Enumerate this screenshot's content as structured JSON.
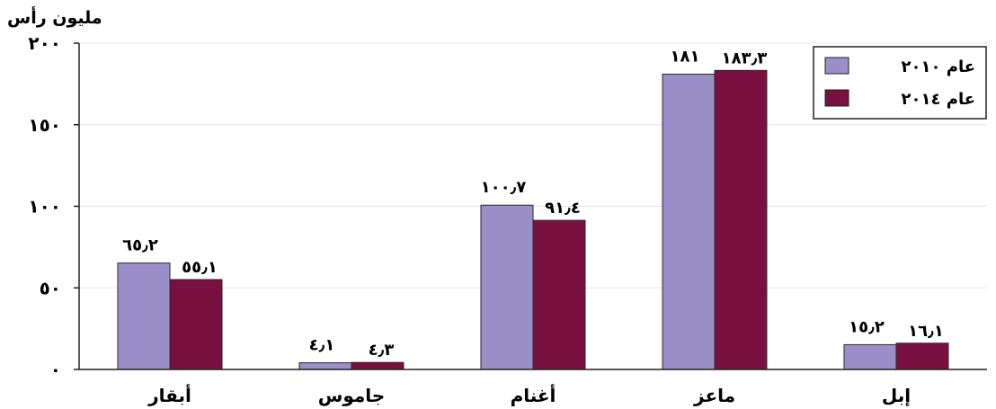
{
  "chart_data": {
    "type": "bar",
    "title": "مليون رأس",
    "categories": [
      "أبقار",
      "جاموس",
      "أغنام",
      "ماعز",
      "إبل"
    ],
    "series": [
      {
        "name": "عام ٢٠١٠",
        "color": "#9b8fc9",
        "values": [
          65.2,
          4.1,
          100.7,
          181,
          15.2
        ],
        "labels": [
          "٦٥٫٢",
          "٤٫١",
          "١٠٠٫٧",
          "١٨١",
          "١٥٫٢"
        ]
      },
      {
        "name": "عام ٢٠١٤",
        "color": "#7a1040",
        "values": [
          55.1,
          4.3,
          91.4,
          183.3,
          16.1
        ],
        "labels": [
          "٥٥٫١",
          "٤٫٣",
          "٩١٫٤",
          "١٨٣٫٣",
          "١٦٫١"
        ]
      }
    ],
    "ylim": [
      0,
      200
    ],
    "yticks": [
      0,
      50,
      100,
      150,
      200
    ],
    "ytick_labels": [
      "٠",
      "٥٠",
      "١٠٠",
      "١٥٠",
      "٢٠٠"
    ],
    "grid": true,
    "legend": "top-right"
  }
}
